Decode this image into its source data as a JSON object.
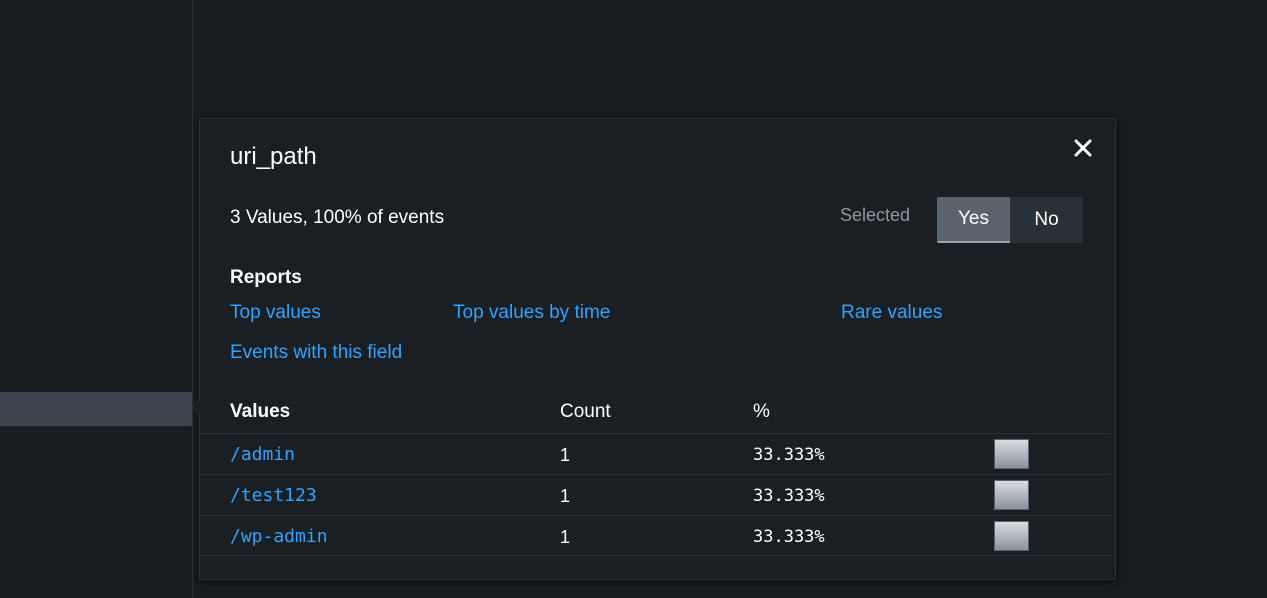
{
  "field": {
    "name": "uri_path",
    "summary": "3 Values, 100% of events"
  },
  "selected": {
    "label": "Selected",
    "yes_label": "Yes",
    "no_label": "No",
    "current": "Yes"
  },
  "reports": {
    "heading": "Reports",
    "links": {
      "top_values": "Top values",
      "top_values_by_time": "Top values by time",
      "rare_values": "Rare values",
      "events_with_field": "Events with this field"
    }
  },
  "table": {
    "headers": {
      "values": "Values",
      "count": "Count",
      "percent": "%"
    },
    "rows": [
      {
        "value": "/admin",
        "count": "1",
        "percent": "33.333%",
        "fraction": 0.33333
      },
      {
        "value": "/test123",
        "count": "1",
        "percent": "33.333%",
        "fraction": 0.33333
      },
      {
        "value": "/wp-admin",
        "count": "1",
        "percent": "33.333%",
        "fraction": 0.33333
      }
    ]
  },
  "icons": {
    "close": "close-icon"
  },
  "colors": {
    "background": "#171d21",
    "link": "#2ea3ff",
    "toggle_active": "#5a636c"
  }
}
